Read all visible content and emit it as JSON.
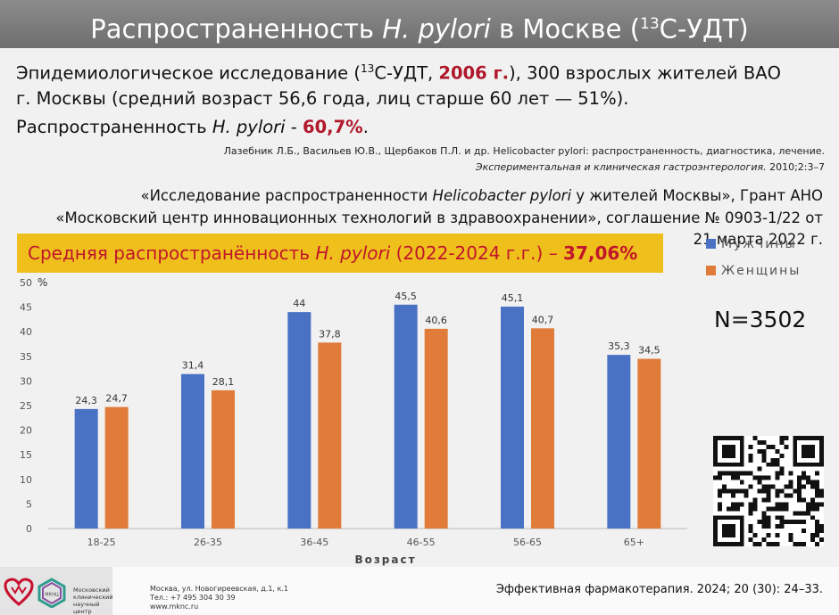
{
  "header": {
    "title_part1": "Распространенность ",
    "title_italic": "H. pylori",
    "title_part2": " в Москве (",
    "title_sup": "13",
    "title_part3": "С-УДТ)"
  },
  "study": {
    "line1_a": "Эпидемиологическое исследование (",
    "line1_sup": "13",
    "line1_b": "С-УДТ, ",
    "line1_year": "2006 г.",
    "line1_c": "), 300 взрослых жителей ВАО",
    "line2": "г. Москвы (средний возраст 56,6 года, лиц старше 60 лет — 51%).",
    "line3_a": "Распространенность ",
    "line3_italic": "H. pylori",
    "line3_b": " - ",
    "line3_value": "60,7%",
    "line3_c": "."
  },
  "reference": {
    "line1": "Лазебник Л.Б., Васильев Ю.В., Щербаков П.Л. и др. Helicobacter pylori: распространенность, диагностика, лечение.",
    "journal": "Экспериментальная и клиническая гастроэнтерология.",
    "details": " 2010;2:3–7"
  },
  "grant": {
    "line1_a": "«Исследование распространенности ",
    "line1_italic": "Helicobacter pylori",
    "line1_b": "  у жителей Москвы», Грант АНО",
    "line2": "«Московский центр инновационных технологий в здравоохранении», соглашение № 0903-1/22 от",
    "line3": "21 марта 2022 г."
  },
  "highlight": {
    "part1": "Средняя распространённость ",
    "italic": "H. pylori",
    "part2": " (2022-2024 г.г.) – ",
    "value": "37,06%"
  },
  "sample": "N=3502",
  "chart_data": {
    "type": "bar",
    "categories": [
      "18-25",
      "26-35",
      "36-45",
      "46-55",
      "56-65",
      "65+"
    ],
    "series": [
      {
        "name": "Мужчины",
        "values": [
          24.3,
          31.4,
          44,
          45.5,
          45.1,
          35.3
        ],
        "labels": [
          "24,3",
          "31,4",
          "44",
          "45,5",
          "45,1",
          "35,3"
        ],
        "color": "#4a72c4"
      },
      {
        "name": "Женщины",
        "values": [
          24.7,
          28.1,
          37.8,
          40.6,
          40.7,
          34.5
        ],
        "labels": [
          "24,7",
          "28,1",
          "37,8",
          "40,6",
          "40,7",
          "34,5"
        ],
        "color": "#e07b39"
      }
    ],
    "ylabel": "%",
    "xlabel": "Возраст",
    "ylim": [
      0,
      50
    ],
    "yticks": [
      0,
      5,
      10,
      15,
      20,
      25,
      30,
      35,
      40,
      45,
      50
    ],
    "grid": false,
    "legend": "top-right"
  },
  "footer": {
    "org_line1": "Московский",
    "org_line2": "клинический",
    "org_line3": "научный центр",
    "logo_abbr": "МКНЦ",
    "address": "Москва, ул. Новогиреевская, д.1, к.1",
    "phone": "Тел.: +7 495 304 30 39",
    "website": "www.mknc.ru",
    "citation": "Эффективная фармакотерапия. 2024; 20 (30): 24–33."
  }
}
